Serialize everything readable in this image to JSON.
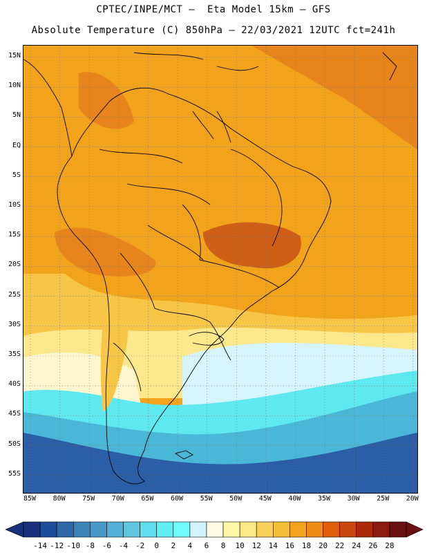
{
  "header": {
    "line1": "CPTEC/INPE/MCT –  Eta Model 15km – GFS",
    "line2": "Absolute Temperature (C) 850hPa – 22/03/2021 12UTC fct=241h"
  },
  "map": {
    "region": "South America",
    "lat_ticks": [
      "15N",
      "10N",
      "5N",
      "EQ",
      "5S",
      "10S",
      "15S",
      "20S",
      "25S",
      "30S",
      "35S",
      "40S",
      "45S",
      "50S",
      "55S"
    ],
    "lon_ticks": [
      "85W",
      "80W",
      "75W",
      "70W",
      "65W",
      "60W",
      "55W",
      "50W",
      "45W",
      "40W",
      "35W",
      "30W",
      "25W",
      "20W"
    ],
    "field_colors": {
      "hot_core": "#cf5e17",
      "warm": "#e7851c",
      "base": "#f2a31c",
      "mild": "#f7c646",
      "cool": "#fbe88c",
      "pale": "#fff6cf",
      "cold_light": "#d6f4fb",
      "cyan": "#5ee8f0",
      "blue": "#4ab6d8",
      "dark_blue": "#2b5ea6"
    }
  },
  "colorbar": {
    "labels": [
      "-14",
      "-12",
      "-10",
      "-8",
      "-6",
      "-4",
      "-2",
      "0",
      "2",
      "4",
      "6",
      "8",
      "10",
      "12",
      "14",
      "16",
      "18",
      "20",
      "22",
      "24",
      "26",
      "28"
    ],
    "colors": [
      "#18307a",
      "#1f4c98",
      "#2e6aa8",
      "#3a84ba",
      "#4799c8",
      "#55aed6",
      "#5fc6e0",
      "#61dcec",
      "#62eef5",
      "#71fcfc",
      "#d1f4fc",
      "#fffae6",
      "#fff7a6",
      "#fbe987",
      "#f8d05a",
      "#f2bf36",
      "#f2a31c",
      "#ee8a16",
      "#e05e0a",
      "#c94710",
      "#ad2a0a",
      "#8d1a0e",
      "#6a1010"
    ]
  }
}
